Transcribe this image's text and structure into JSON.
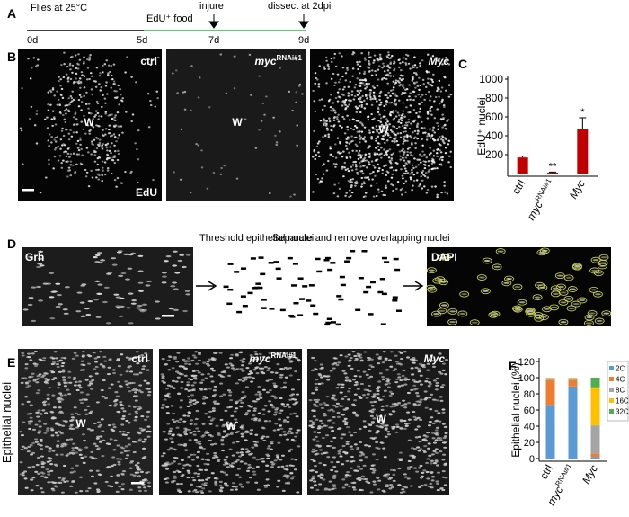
{
  "panels": {
    "A": {
      "letter": "A",
      "start_label": "Flies at 25°C",
      "food_label": "EdU⁺ food",
      "injure_label": "injure",
      "dissect_label": "dissect at 2dpi",
      "days": [
        "0d",
        "5d",
        "7d",
        "9d"
      ]
    },
    "B": {
      "letter": "B",
      "labels": {
        "ctrl": "ctrl",
        "myc": "myc",
        "myc_sup": "RNAi#1",
        "Myc": "Myc",
        "wound": "W",
        "stain": "EdU"
      }
    },
    "C": {
      "letter": "C",
      "chart_data": {
        "type": "bar",
        "y_label": "EdU⁺ nuclei",
        "categories": [
          "ctrl",
          "myc",
          "Myc"
        ],
        "category_superscripts": [
          null,
          "RNAi#1",
          null
        ],
        "values": [
          170,
          10,
          470
        ],
        "errors": [
          15,
          5,
          120
        ],
        "value_annotations": [
          null,
          "**",
          "*"
        ],
        "color": "#c00000",
        "ylim": [
          0,
          1000
        ],
        "yticks": [
          200,
          400,
          600,
          800,
          1000
        ]
      }
    },
    "D": {
      "letter": "D",
      "stain": "Grh",
      "step1": "Threshold epithelial nuclei",
      "step2": "Separate and remove overlapping nuclei",
      "stain2": "DAPI"
    },
    "E": {
      "letter": "E",
      "y_label": "Epithelial nuclei",
      "labels": {
        "ctrl": "ctrl",
        "myc": "myc",
        "myc_sup": "RNAi#1",
        "Myc": "Myc",
        "wound": "W"
      }
    },
    "F": {
      "letter": "F",
      "chart_data": {
        "type": "stacked_bar",
        "y_label": "Epithelial nuclei (%)",
        "categories": [
          "ctrl",
          "myc",
          "Myc"
        ],
        "category_superscripts": [
          null,
          "RNAi#1",
          null
        ],
        "ylim": [
          0,
          120
        ],
        "yticks": [
          0,
          20,
          40,
          60,
          80,
          100,
          120
        ],
        "series": [
          {
            "name": "2C",
            "color": "#5b9bd5",
            "values": [
              66,
              89,
              2
            ]
          },
          {
            "name": "4C",
            "color": "#ed7d31",
            "values": [
              31,
              8,
              4
            ]
          },
          {
            "name": "8C",
            "color": "#a5a5a5",
            "values": [
              2,
              2,
              35
            ]
          },
          {
            "name": "16C",
            "color": "#ffc000",
            "values": [
              1,
              1,
              47
            ]
          },
          {
            "name": "32C",
            "color": "#4caf50",
            "values": [
              0,
              0,
              12
            ]
          }
        ]
      }
    }
  }
}
